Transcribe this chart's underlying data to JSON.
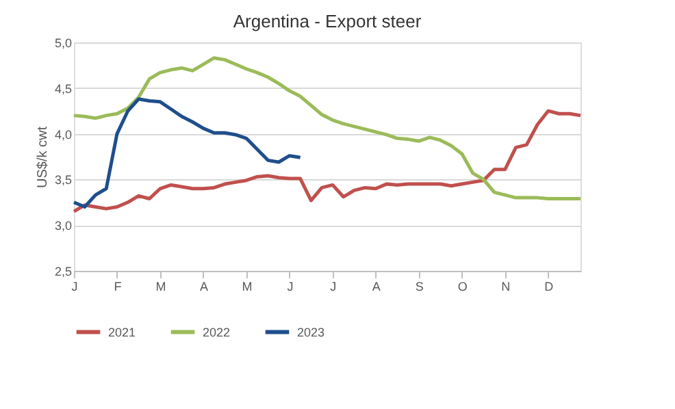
{
  "chart_data": {
    "type": "line",
    "title": "Argentina - Export steer",
    "ylabel": "US$/k cwt",
    "categories": [
      "J",
      null,
      null,
      null,
      "F",
      null,
      null,
      null,
      "M",
      null,
      null,
      null,
      "A",
      null,
      null,
      null,
      "M",
      null,
      null,
      null,
      "J",
      null,
      null,
      null,
      "J",
      null,
      null,
      null,
      "A",
      null,
      null,
      null,
      "S",
      null,
      null,
      null,
      "O",
      null,
      null,
      null,
      "N",
      null,
      null,
      null,
      "D",
      null,
      null,
      null
    ],
    "ylim": [
      2.5,
      5.0
    ],
    "yticks": [
      {
        "value": 2.5,
        "label": "2,5"
      },
      {
        "value": 3.0,
        "label": "3,0"
      },
      {
        "value": 3.5,
        "label": "3,5"
      },
      {
        "value": 4.0,
        "label": "4,0"
      },
      {
        "value": 4.5,
        "label": "4,5"
      },
      {
        "value": 5.0,
        "label": "5,0"
      }
    ],
    "grid": "y",
    "legend": "bottom",
    "marker": "none",
    "line_style": "solid",
    "series": [
      {
        "name": "2021",
        "color": "#c0504d",
        "values": [
          3.15,
          3.22,
          3.2,
          3.18,
          3.2,
          3.25,
          3.32,
          3.29,
          3.4,
          3.44,
          3.42,
          3.4,
          3.4,
          3.41,
          3.45,
          3.47,
          3.49,
          3.53,
          3.54,
          3.52,
          3.51,
          3.51,
          3.27,
          3.41,
          3.44,
          3.31,
          3.38,
          3.41,
          3.4,
          3.45,
          3.44,
          3.45,
          3.45,
          3.45,
          3.45,
          3.43,
          3.45,
          3.47,
          3.49,
          3.61,
          3.61,
          3.85,
          3.88,
          4.1,
          4.25,
          4.22,
          4.22,
          4.2
        ]
      },
      {
        "name": "2022",
        "color": "#9bbb59",
        "values": [
          4.2,
          4.19,
          4.17,
          4.2,
          4.22,
          4.28,
          4.4,
          4.6,
          4.67,
          4.7,
          4.72,
          4.69,
          4.76,
          4.83,
          4.81,
          4.76,
          4.71,
          4.67,
          4.62,
          4.55,
          4.47,
          4.41,
          4.31,
          4.21,
          4.15,
          4.11,
          4.08,
          4.05,
          4.02,
          3.99,
          3.95,
          3.94,
          3.92,
          3.96,
          3.93,
          3.87,
          3.78,
          3.57,
          3.5,
          3.36,
          3.33,
          3.3,
          3.3,
          3.3,
          3.29,
          3.29,
          3.29,
          3.29
        ]
      },
      {
        "name": "2023",
        "color": "#1f4e8c",
        "values": [
          3.25,
          3.2,
          3.33,
          3.4,
          4.0,
          4.25,
          4.38,
          4.36,
          4.35,
          4.27,
          4.19,
          4.13,
          4.06,
          4.01,
          4.01,
          3.99,
          3.95,
          3.83,
          3.71,
          3.69,
          3.76,
          3.74,
          null,
          null,
          null,
          null,
          null,
          null,
          null,
          null,
          null,
          null,
          null,
          null,
          null,
          null,
          null,
          null,
          null,
          null,
          null,
          null,
          null,
          null,
          null,
          null,
          null,
          null
        ]
      }
    ]
  }
}
